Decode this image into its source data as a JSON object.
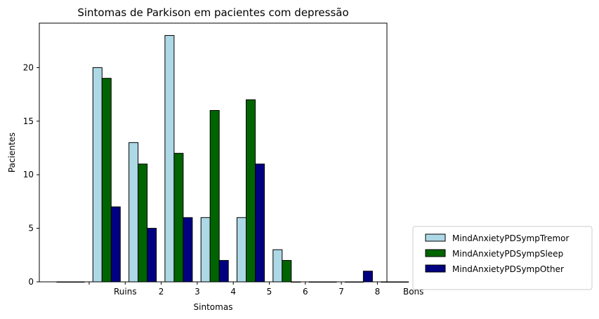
{
  "chart_data": {
    "type": "bar",
    "title": "Sintomas de Parkison em pacientes com depressão",
    "xlabel": "Sintomas",
    "ylabel": "Pacientes",
    "categories": [
      "",
      "Ruins",
      "2",
      "3",
      "4",
      "5",
      "6",
      "7",
      "8",
      "Bons"
    ],
    "ylim": [
      0,
      24.15
    ],
    "yticks": [
      0,
      5,
      10,
      15,
      20
    ],
    "grid": false,
    "legend_position": "outside-bottom-right",
    "series": [
      {
        "name": "MindAnxietyPDSympTremor",
        "color": "#add8e6",
        "values": [
          0,
          20,
          13,
          23,
          6,
          6,
          3,
          0,
          0,
          0
        ]
      },
      {
        "name": "MindAnxietyPDSympSleep",
        "color": "#006400",
        "values": [
          0,
          19,
          11,
          12,
          16,
          17,
          2,
          0,
          0,
          0
        ]
      },
      {
        "name": "MindAnxietyPDSympOther",
        "color": "#000080",
        "values": [
          0,
          7,
          5,
          6,
          2,
          11,
          0,
          0,
          1,
          0
        ]
      }
    ]
  }
}
